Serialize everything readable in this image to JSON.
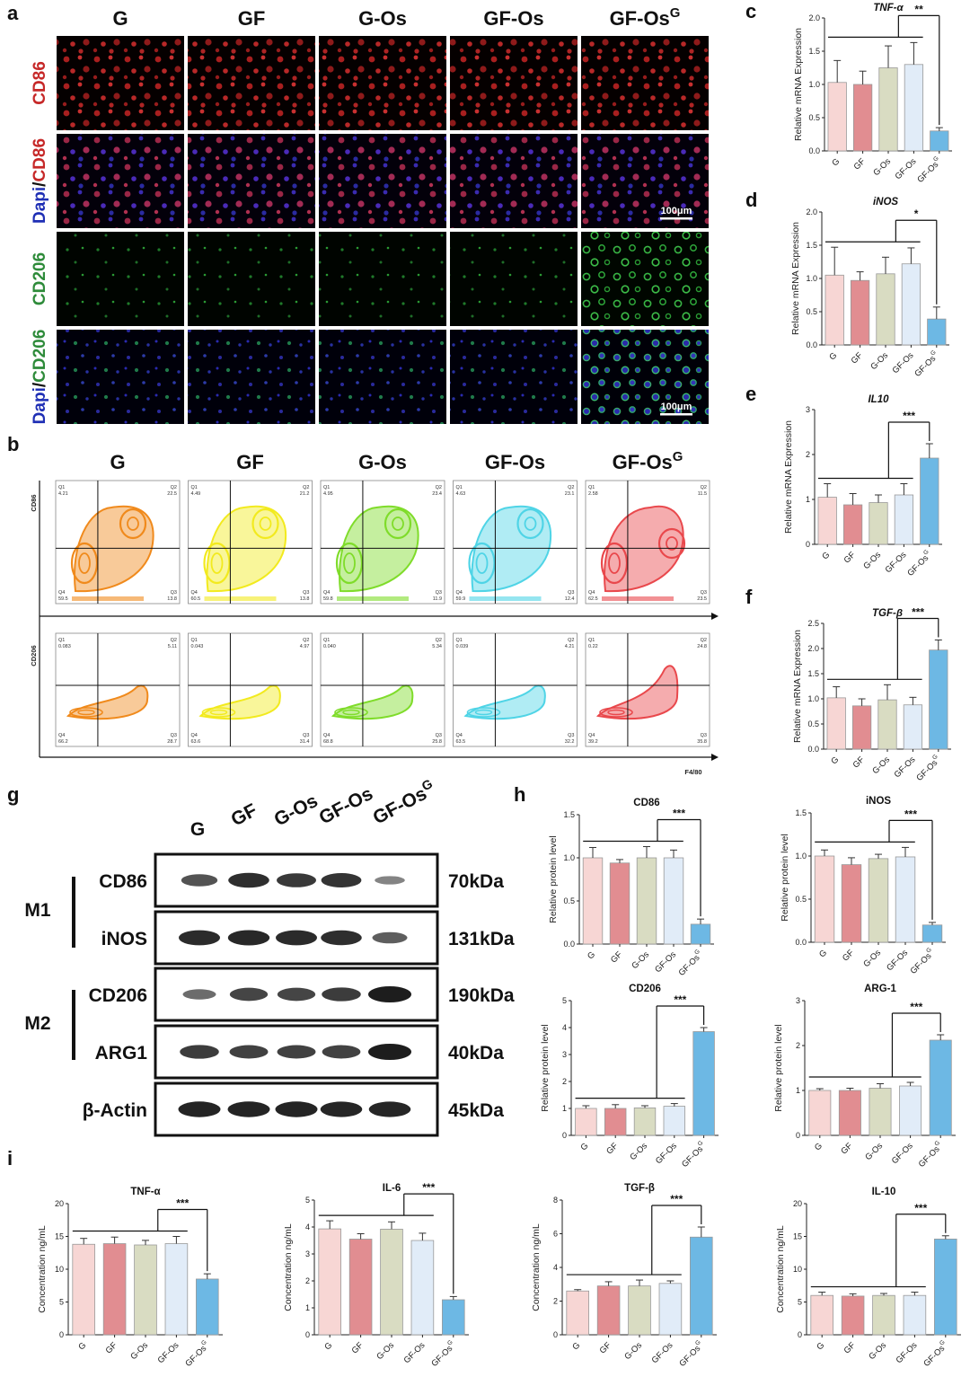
{
  "panel_letters": [
    "a",
    "b",
    "c",
    "d",
    "e",
    "f",
    "g",
    "h",
    "i"
  ],
  "groups": [
    "G",
    "GF",
    "G-Os",
    "GF-Os",
    "GF-Os"
  ],
  "group_superscript": "G",
  "colors": {
    "bars": [
      "#f7d6d4",
      "#e18d91",
      "#d9dcc2",
      "#e1ecf8",
      "#6db8e4"
    ],
    "microscopy_red": "#d23a3a",
    "microscopy_blue": "#2a2ab8",
    "microscopy_green": "#2a9c3a",
    "flow": [
      "#f08a1c",
      "#f2ea1e",
      "#7fdc2a",
      "#4fd4e6",
      "#e9484c"
    ]
  },
  "panel_a": {
    "row_labels": [
      {
        "parts": [
          {
            "text": "CD86",
            "color": "#c62828"
          }
        ]
      },
      {
        "parts": [
          {
            "text": "Dapi",
            "color": "#1f2fb5"
          },
          {
            "text": "/",
            "color": "#111111"
          },
          {
            "text": "CD86",
            "color": "#c62828"
          }
        ]
      },
      {
        "parts": [
          {
            "text": "CD206",
            "color": "#2e8b3a"
          }
        ]
      },
      {
        "parts": [
          {
            "text": "Dapi",
            "color": "#1f2fb5"
          },
          {
            "text": "/",
            "color": "#111111"
          },
          {
            "text": "CD206",
            "color": "#2e8b3a"
          }
        ]
      }
    ],
    "scale_bar": "100μm"
  },
  "panel_b": {
    "y_axis_top": "CD86",
    "y_axis_bottom": "CD206",
    "x_axis": "F4/80",
    "quadrant_names": [
      "Q1",
      "Q2",
      "Q3",
      "Q4"
    ],
    "cd86": [
      {
        "q1": "4.21",
        "q2": "22.5",
        "q3": "13.8",
        "q4": "59.5"
      },
      {
        "q1": "4.49",
        "q2": "21.2",
        "q3": "13.8",
        "q4": "60.5"
      },
      {
        "q1": "4.95",
        "q2": "23.4",
        "q3": "11.9",
        "q4": "59.8"
      },
      {
        "q1": "4.63",
        "q2": "23.1",
        "q3": "12.4",
        "q4": "59.9"
      },
      {
        "q1": "2.58",
        "q2": "11.5",
        "q3": "23.5",
        "q4": "62.5"
      }
    ],
    "cd206": [
      {
        "q1": "0.083",
        "q2": "5.11",
        "q3": "28.7",
        "q4": "66.2"
      },
      {
        "q1": "0.043",
        "q2": "4.97",
        "q3": "31.4",
        "q4": "63.6"
      },
      {
        "q1": "0.040",
        "q2": "5.34",
        "q3": "25.8",
        "q4": "68.8"
      },
      {
        "q1": "0.039",
        "q2": "4.21",
        "q3": "32.2",
        "q4": "63.5"
      },
      {
        "q1": "0.22",
        "q2": "24.8",
        "q3": "35.8",
        "q4": "39.2"
      }
    ]
  },
  "panel_g": {
    "lanes": [
      "G",
      "GF",
      "G-Os",
      "GF-Os",
      "GF-Os"
    ],
    "groups": [
      {
        "label": "M1",
        "rows": [
          "CD86",
          "iNOS"
        ]
      },
      {
        "label": "M2",
        "rows": [
          "CD206",
          "ARG1"
        ]
      }
    ],
    "rows": [
      "CD86",
      "iNOS",
      "CD206",
      "ARG1",
      "β-Actin"
    ],
    "sizes": [
      "70kDa",
      "131kDa",
      "190kDa",
      "40kDa",
      "45kDa"
    ],
    "band_intensity": [
      [
        0.62,
        0.88,
        0.8,
        0.84,
        0.28
      ],
      [
        0.9,
        0.92,
        0.9,
        0.88,
        0.55
      ],
      [
        0.45,
        0.72,
        0.72,
        0.78,
        1.0
      ],
      [
        0.78,
        0.75,
        0.75,
        0.74,
        1.0
      ],
      [
        0.95,
        0.95,
        0.95,
        0.93,
        0.93
      ]
    ]
  },
  "chart_data": [
    {
      "id": "c",
      "type": "bar",
      "title": "TNF-α",
      "ylabel": "Relative mRNA Expression",
      "categories": [
        "G",
        "GF",
        "G-Os",
        "GF-Os",
        "GF-Os"
      ],
      "category_superscripts": [
        "",
        "",
        "",
        "",
        "G"
      ],
      "values": [
        1.03,
        1.0,
        1.25,
        1.3,
        0.3
      ],
      "errors": [
        0.33,
        0.2,
        0.33,
        0.33,
        0.05
      ],
      "ylim": [
        0,
        2
      ],
      "yticks": [
        "0.0",
        "0.5",
        "1.0",
        "1.5",
        "2.0"
      ],
      "significance": "**"
    },
    {
      "id": "d",
      "type": "bar",
      "title": "iNOS",
      "ylabel": "Relative mRNA Expression",
      "categories": [
        "G",
        "GF",
        "G-Os",
        "GF-Os",
        "GF-Os"
      ],
      "category_superscripts": [
        "",
        "",
        "",
        "",
        "G"
      ],
      "values": [
        1.05,
        0.97,
        1.07,
        1.22,
        0.39
      ],
      "errors": [
        0.42,
        0.13,
        0.25,
        0.24,
        0.18
      ],
      "ylim": [
        0,
        2
      ],
      "yticks": [
        "0.0",
        "0.5",
        "1.0",
        "1.5",
        "2.0"
      ],
      "significance": "*"
    },
    {
      "id": "e",
      "type": "bar",
      "title": "IL10",
      "ylabel": "Relative mRNA Expression",
      "categories": [
        "G",
        "GF",
        "G-Os",
        "GF-Os",
        "GF-Os"
      ],
      "category_superscripts": [
        "",
        "",
        "",
        "",
        "G"
      ],
      "values": [
        1.05,
        0.88,
        0.93,
        1.1,
        1.92
      ],
      "errors": [
        0.3,
        0.25,
        0.17,
        0.25,
        0.32
      ],
      "ylim": [
        0,
        3
      ],
      "yticks": [
        "0",
        "1",
        "2",
        "3"
      ],
      "significance": "***"
    },
    {
      "id": "f",
      "type": "bar",
      "title": "TGF-β",
      "ylabel": "Relative mRNA Expression",
      "categories": [
        "G",
        "GF",
        "G-Os",
        "GF-Os",
        "GF-Os"
      ],
      "category_superscripts": [
        "",
        "",
        "",
        "",
        "G"
      ],
      "values": [
        1.02,
        0.86,
        0.98,
        0.88,
        1.97
      ],
      "errors": [
        0.22,
        0.14,
        0.3,
        0.15,
        0.2
      ],
      "ylim": [
        0,
        2.5
      ],
      "yticks": [
        "0.0",
        "0.5",
        "1.0",
        "1.5",
        "2.0",
        "2.5"
      ],
      "significance": "***"
    },
    {
      "id": "h-cd86",
      "type": "bar",
      "title": "CD86",
      "ylabel": "Relative protein level",
      "categories": [
        "G",
        "GF",
        "G-Os",
        "GF-Os",
        "GF-Os"
      ],
      "category_superscripts": [
        "",
        "",
        "",
        "",
        "G"
      ],
      "values": [
        1.0,
        0.94,
        1.0,
        1.0,
        0.23
      ],
      "errors": [
        0.12,
        0.04,
        0.13,
        0.09,
        0.06
      ],
      "ylim": [
        0,
        1.5
      ],
      "yticks": [
        "0.0",
        "0.5",
        "1.0",
        "1.5"
      ],
      "significance": "***"
    },
    {
      "id": "h-inos",
      "type": "bar",
      "title": "iNOS",
      "ylabel": "Relative protein level",
      "categories": [
        "G",
        "GF",
        "G-Os",
        "GF-Os",
        "GF-Os"
      ],
      "category_superscripts": [
        "",
        "",
        "",
        "",
        "G"
      ],
      "values": [
        1.0,
        0.9,
        0.97,
        0.99,
        0.2
      ],
      "errors": [
        0.07,
        0.08,
        0.05,
        0.11,
        0.03
      ],
      "ylim": [
        0,
        1.5
      ],
      "yticks": [
        "0.0",
        "0.5",
        "1.0",
        "1.5"
      ],
      "significance": "***"
    },
    {
      "id": "h-cd206",
      "type": "bar",
      "title": "CD206",
      "ylabel": "Relative protein level",
      "categories": [
        "G",
        "GF",
        "G-Os",
        "GF-Os",
        "GF-Os"
      ],
      "category_superscripts": [
        "",
        "",
        "",
        "",
        "G"
      ],
      "values": [
        1.0,
        1.0,
        1.02,
        1.08,
        3.85
      ],
      "errors": [
        0.1,
        0.14,
        0.08,
        0.1,
        0.15
      ],
      "ylim": [
        0,
        5
      ],
      "yticks": [
        "0",
        "1",
        "2",
        "3",
        "4",
        "5"
      ],
      "significance": "***"
    },
    {
      "id": "h-arg1",
      "type": "bar",
      "title": "ARG-1",
      "ylabel": "Relative protein level",
      "categories": [
        "G",
        "GF",
        "G-Os",
        "GF-Os",
        "GF-Os"
      ],
      "category_superscripts": [
        "",
        "",
        "",
        "",
        "G"
      ],
      "values": [
        1.0,
        1.0,
        1.05,
        1.1,
        2.12
      ],
      "errors": [
        0.04,
        0.05,
        0.1,
        0.08,
        0.12
      ],
      "ylim": [
        0,
        3
      ],
      "yticks": [
        "0",
        "1",
        "2",
        "3"
      ],
      "significance": "***"
    },
    {
      "id": "i-tnf",
      "type": "bar",
      "title": "TNF-α",
      "ylabel": "Concentration ng/mL",
      "categories": [
        "G",
        "GF",
        "G-Os",
        "GF-Os",
        "GF-Os"
      ],
      "category_superscripts": [
        "",
        "",
        "",
        "",
        "G"
      ],
      "values": [
        13.8,
        13.9,
        13.7,
        13.9,
        8.5
      ],
      "errors": [
        0.9,
        1.0,
        0.7,
        1.1,
        0.8
      ],
      "ylim": [
        0,
        20
      ],
      "yticks": [
        "0",
        "5",
        "10",
        "15",
        "20"
      ],
      "significance": "***"
    },
    {
      "id": "i-il6",
      "type": "bar",
      "title": "IL-6",
      "ylabel": "Concentration ng/mL",
      "categories": [
        "G",
        "GF",
        "G-Os",
        "GF-Os",
        "GF-Os"
      ],
      "category_superscripts": [
        "",
        "",
        "",
        "",
        "G"
      ],
      "values": [
        3.93,
        3.55,
        3.92,
        3.5,
        1.3
      ],
      "errors": [
        0.3,
        0.2,
        0.27,
        0.27,
        0.12
      ],
      "ylim": [
        0,
        5
      ],
      "yticks": [
        "0",
        "1",
        "2",
        "3",
        "4",
        "5"
      ],
      "significance": "***"
    },
    {
      "id": "i-tgf",
      "type": "bar",
      "title": "TGF-β",
      "ylabel": "Concentration ng/mL",
      "categories": [
        "G",
        "GF",
        "G-Os",
        "GF-Os",
        "GF-Os"
      ],
      "category_superscripts": [
        "",
        "",
        "",
        "",
        "G"
      ],
      "values": [
        2.6,
        2.9,
        2.9,
        3.05,
        5.8
      ],
      "errors": [
        0.08,
        0.25,
        0.35,
        0.15,
        0.6
      ],
      "ylim": [
        0,
        8
      ],
      "yticks": [
        "0",
        "2",
        "4",
        "6",
        "8"
      ],
      "significance": "***"
    },
    {
      "id": "i-il10",
      "type": "bar",
      "title": "IL-10",
      "ylabel": "Concentration ng/mL",
      "categories": [
        "G",
        "GF",
        "G-Os",
        "GF-Os",
        "GF-Os"
      ],
      "category_superscripts": [
        "",
        "",
        "",
        "",
        "G"
      ],
      "values": [
        6.0,
        5.9,
        6.0,
        6.0,
        14.6
      ],
      "errors": [
        0.5,
        0.35,
        0.3,
        0.5,
        0.5
      ],
      "ylim": [
        0,
        20
      ],
      "yticks": [
        "0",
        "5",
        "10",
        "15",
        "20"
      ],
      "significance": "***"
    }
  ]
}
